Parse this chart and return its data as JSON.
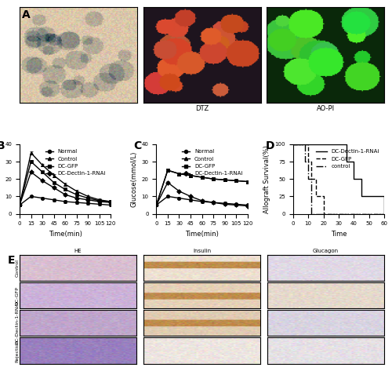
{
  "panel_B": {
    "title": "B",
    "xlabel": "Time(min)",
    "ylabel": "Glucose(mmol/L)",
    "xlim": [
      0,
      120
    ],
    "ylim": [
      0,
      40
    ],
    "xticks": [
      0,
      15,
      30,
      45,
      60,
      75,
      90,
      105,
      120
    ],
    "yticks": [
      0,
      10,
      20,
      30,
      40
    ],
    "time_points": [
      0,
      15,
      30,
      45,
      60,
      75,
      90,
      105,
      120
    ],
    "Normal": [
      5,
      10,
      9,
      8,
      7,
      6.5,
      6,
      5.5,
      5
    ],
    "Control": [
      5,
      35,
      28,
      22,
      17,
      13,
      10,
      8,
      7
    ],
    "DC_GFP": [
      5,
      30,
      24,
      18,
      14,
      11,
      9,
      7.5,
      7
    ],
    "DC_Dectin1_RNAi": [
      5,
      24,
      19,
      15,
      11,
      9,
      8,
      7,
      6.5
    ],
    "legend_labels": [
      "Normal",
      "Control",
      "DC-GFP",
      "DC-Dectin-1-RNAi"
    ],
    "line_styles": [
      "-o",
      "-^",
      "-s",
      "-D"
    ],
    "colors": [
      "black",
      "black",
      "black",
      "black"
    ],
    "markersize": 3,
    "linewidth": 1
  },
  "panel_C": {
    "title": "C",
    "xlabel": "Time(min)",
    "ylabel": "Glucose(mmol/L)",
    "xlim": [
      0,
      120
    ],
    "ylim": [
      0,
      40
    ],
    "xticks": [
      0,
      15,
      30,
      45,
      60,
      75,
      90,
      105,
      120
    ],
    "yticks": [
      0,
      10,
      20,
      30,
      40
    ],
    "time_points": [
      0,
      15,
      30,
      45,
      60,
      75,
      90,
      105,
      120
    ],
    "Normal": [
      5,
      10,
      9,
      8,
      7,
      6.5,
      6,
      5.5,
      5
    ],
    "Control": [
      5,
      25,
      23,
      22,
      21,
      20,
      19.5,
      19,
      18.5
    ],
    "DC_GFP": [
      5,
      25,
      23,
      22,
      21,
      20,
      19.5,
      19,
      18.5
    ],
    "DC_Dectin1_RNAi": [
      5,
      18,
      13,
      10,
      7.5,
      6.5,
      5.5,
      5,
      4.5
    ],
    "legend_labels": [
      "Normal",
      "Control",
      "DC-GFP",
      "DC-Dectin-1-RNAi"
    ],
    "line_styles": [
      "-o",
      "-^",
      "-s",
      "-D"
    ],
    "colors": [
      "black",
      "black",
      "black",
      "black"
    ],
    "markersize": 3,
    "linewidth": 1
  },
  "panel_D": {
    "title": "D",
    "xlabel": "Time",
    "ylabel": "Allograft Survival(%)",
    "xlim": [
      0,
      60
    ],
    "ylim": [
      0,
      100
    ],
    "xticks": [
      0,
      10,
      20,
      30,
      40,
      50,
      60
    ],
    "yticks": [
      0,
      25,
      50,
      75,
      100
    ],
    "DC_Dectin1_RNAi_x": [
      0,
      10,
      20,
      25,
      30,
      35,
      40,
      45,
      60
    ],
    "DC_Dectin1_RNAi_y": [
      100,
      100,
      100,
      100,
      100,
      75,
      50,
      25,
      0
    ],
    "DC_GFP_x": [
      0,
      8,
      10,
      12,
      15,
      20,
      60
    ],
    "DC_GFP_y": [
      100,
      100,
      75,
      50,
      25,
      0,
      0
    ],
    "control_x": [
      0,
      7,
      8,
      10,
      12,
      60
    ],
    "control_y": [
      100,
      100,
      75,
      50,
      0,
      0
    ],
    "legend_labels": [
      "DC-Dectin-1-RNAi",
      "DC-GFP",
      "control"
    ],
    "line_styles": [
      "-",
      "--",
      "-."
    ],
    "colors": [
      "black",
      "black",
      "black"
    ],
    "linewidth": 1
  },
  "bg_color": "#ffffff",
  "font_color": "#000000",
  "panel_label_fontsize": 10,
  "axis_label_fontsize": 6,
  "tick_fontsize": 5,
  "legend_fontsize": 5
}
